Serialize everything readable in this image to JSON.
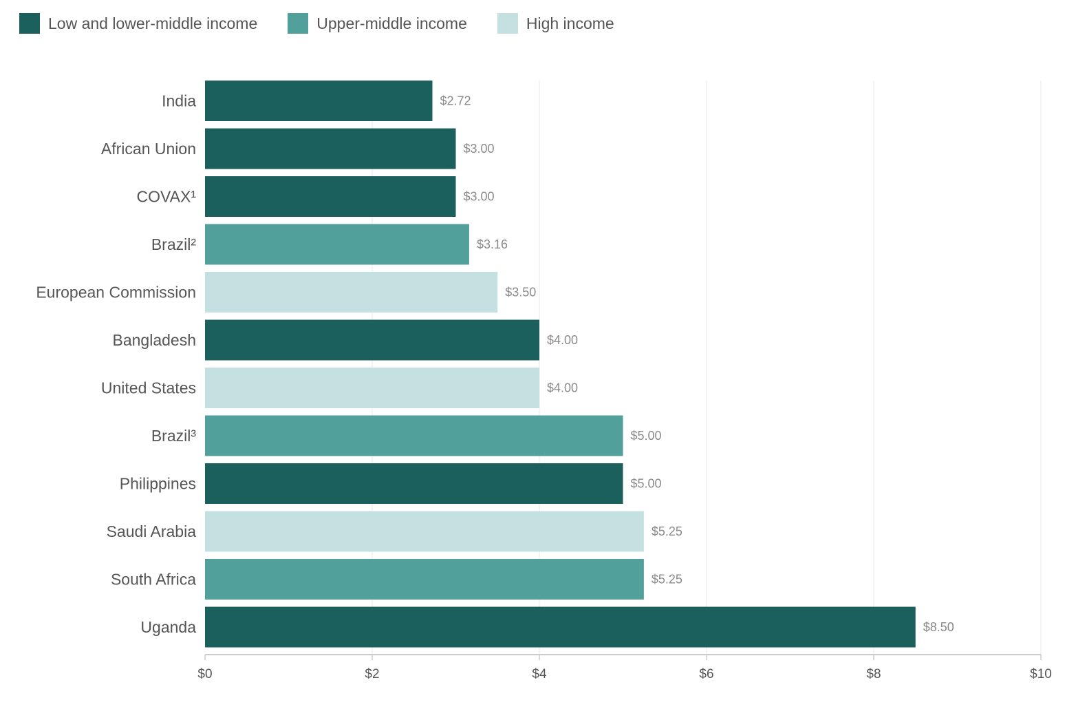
{
  "chart_data": {
    "type": "bar",
    "orientation": "horizontal",
    "title": "",
    "xlabel": "",
    "ylabel": "",
    "xlim": [
      0,
      10
    ],
    "x_ticks": [
      0,
      2,
      4,
      6,
      8,
      10
    ],
    "x_tick_labels": [
      "$0",
      "$2",
      "$4",
      "$6",
      "$8",
      "$10"
    ],
    "grid": true,
    "legend_position": "top-left",
    "groups": [
      {
        "key": "low",
        "name": "Low and lower-middle income",
        "color": "#1b605c"
      },
      {
        "key": "upper",
        "name": "Upper-middle income",
        "color": "#52a09b"
      },
      {
        "key": "high",
        "name": "High income",
        "color": "#c5e0e0"
      }
    ],
    "categories": [
      "India",
      "African Union",
      "COVAX¹",
      "Brazil²",
      "European Commission",
      "Bangladesh",
      "United States",
      "Brazil³",
      "Philippines",
      "Saudi Arabia",
      "South Africa",
      "Uganda"
    ],
    "values": [
      2.72,
      3.0,
      3.0,
      3.16,
      3.5,
      4.0,
      4.0,
      5.0,
      5.0,
      5.25,
      5.25,
      8.5
    ],
    "value_labels": [
      "$2.72",
      "$3.00",
      "$3.00",
      "$3.16",
      "$3.50",
      "$4.00",
      "$4.00",
      "$5.00",
      "$5.00",
      "$5.25",
      "$5.25",
      "$8.50"
    ],
    "bar_groups": [
      "low",
      "low",
      "low",
      "upper",
      "high",
      "low",
      "high",
      "upper",
      "low",
      "high",
      "upper",
      "low"
    ]
  },
  "colors": {
    "gridline": "#e8e8e8",
    "axis": "#cccccc",
    "category_label": "#555555",
    "value_label": "#8a8a8a",
    "tick_label": "#555555"
  }
}
